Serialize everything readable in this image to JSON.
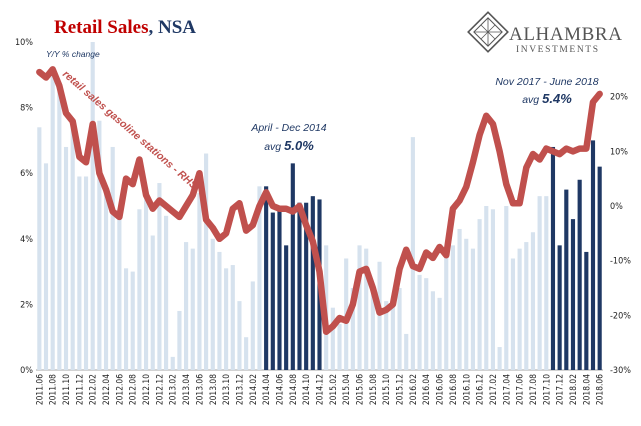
{
  "title": {
    "main": "Retail Sales",
    "suffix": ", NSA"
  },
  "logo": {
    "name": "ALHAMBRA",
    "sub": "INVESTMENTS",
    "color": "#555555"
  },
  "colors": {
    "bar_light": "#d6e2ee",
    "bar_dark": "#1f3864",
    "line": "#c0504d",
    "title_red": "#c00000",
    "title_blue": "#1f3864"
  },
  "chart_data": {
    "type": "bar",
    "left_axis": {
      "label": "Y/Y % change",
      "min": 0,
      "max": 10,
      "ticks": [
        "0%",
        "2%",
        "4%",
        "6%",
        "8%",
        "10%"
      ]
    },
    "right_axis": {
      "label": "",
      "min": -30,
      "max": 30,
      "ticks": [
        "-30%",
        "-20%",
        "-10%",
        "0%",
        "10%",
        "20%"
      ]
    },
    "x_tick_labels": [
      "2011.06",
      "2011.08",
      "2011.10",
      "2011.12",
      "2012.02",
      "2012.04",
      "2012.06",
      "2012.08",
      "2012.10",
      "2012.12",
      "2013.02",
      "2013.04",
      "2013.06",
      "2013.08",
      "2013.10",
      "2013.12",
      "2014.02",
      "2014.04",
      "2014.06",
      "2014.08",
      "2014.10",
      "2014.12",
      "2015.02",
      "2015.04",
      "2015.06",
      "2015.08",
      "2015.10",
      "2015.12",
      "2016.02",
      "2016.04",
      "2016.06",
      "2016.08",
      "2016.10",
      "2016.12",
      "2017.02",
      "2017.04",
      "2017.06",
      "2017.08",
      "2017.10",
      "2017.12",
      "2018.02",
      "2018.04",
      "2018.06"
    ],
    "highlight_ranges": [
      [
        "2014.04",
        "2014.12"
      ],
      [
        "2017.11",
        "2018.06"
      ]
    ],
    "series": [
      {
        "kind": "bar",
        "axis": "left",
        "x": [
          "2011.06",
          "2011.07",
          "2011.08",
          "2011.09",
          "2011.10",
          "2011.11",
          "2011.12",
          "2012.01",
          "2012.02",
          "2012.03",
          "2012.04",
          "2012.05",
          "2012.06",
          "2012.07",
          "2012.08",
          "2012.09",
          "2012.10",
          "2012.11",
          "2012.12",
          "2013.01",
          "2013.02",
          "2013.03",
          "2013.04",
          "2013.05",
          "2013.06",
          "2013.07",
          "2013.08",
          "2013.09",
          "2013.10",
          "2013.11",
          "2013.12",
          "2014.01",
          "2014.02",
          "2014.03",
          "2014.04",
          "2014.05",
          "2014.06",
          "2014.07",
          "2014.08",
          "2014.09",
          "2014.10",
          "2014.11",
          "2014.12",
          "2015.01",
          "2015.02",
          "2015.03",
          "2015.04",
          "2015.05",
          "2015.06",
          "2015.07",
          "2015.08",
          "2015.09",
          "2015.10",
          "2015.11",
          "2015.12",
          "2016.01",
          "2016.02",
          "2016.03",
          "2016.04",
          "2016.05",
          "2016.06",
          "2016.07",
          "2016.08",
          "2016.09",
          "2016.10",
          "2016.11",
          "2016.12",
          "2017.01",
          "2017.02",
          "2017.03",
          "2017.04",
          "2017.05",
          "2017.06",
          "2017.07",
          "2017.08",
          "2017.09",
          "2017.10",
          "2017.11",
          "2017.12",
          "2018.01",
          "2018.02",
          "2018.03",
          "2018.04",
          "2018.05",
          "2018.06"
        ],
        "values": [
          7.4,
          6.3,
          9.0,
          8.5,
          6.8,
          7.4,
          5.9,
          5.9,
          10.0,
          7.6,
          5.4,
          6.8,
          4.9,
          3.1,
          3.0,
          4.9,
          5.2,
          4.1,
          5.7,
          4.7,
          0.4,
          1.8,
          3.9,
          3.7,
          5.4,
          6.6,
          4.0,
          3.6,
          3.1,
          3.2,
          2.1,
          1.0,
          2.7,
          5.6,
          5.6,
          4.8,
          4.9,
          3.8,
          6.3,
          5.1,
          5.1,
          5.3,
          5.2,
          3.8,
          1.9,
          1.4,
          3.4,
          2.5,
          3.8,
          3.7,
          2.6,
          3.3,
          2.1,
          2.1,
          2.5,
          1.1,
          7.1,
          2.9,
          2.8,
          2.4,
          2.2,
          3.6,
          3.8,
          4.3,
          4.0,
          3.7,
          4.6,
          5.0,
          4.9,
          0.7,
          5.0,
          3.4,
          3.7,
          3.9,
          4.2,
          5.3,
          5.3,
          6.8,
          3.8,
          5.5,
          4.6,
          5.8,
          3.6,
          7.0,
          6.2
        ]
      },
      {
        "kind": "line",
        "axis": "right",
        "name": "retail sales gasoline stations - RHS",
        "x": [
          "2011.06",
          "2011.07",
          "2011.08",
          "2011.09",
          "2011.10",
          "2011.11",
          "2011.12",
          "2012.01",
          "2012.02",
          "2012.03",
          "2012.04",
          "2012.05",
          "2012.06",
          "2012.07",
          "2012.08",
          "2012.09",
          "2012.10",
          "2012.11",
          "2012.12",
          "2013.01",
          "2013.02",
          "2013.03",
          "2013.04",
          "2013.05",
          "2013.06",
          "2013.07",
          "2013.08",
          "2013.09",
          "2013.10",
          "2013.11",
          "2013.12",
          "2014.01",
          "2014.02",
          "2014.03",
          "2014.04",
          "2014.05",
          "2014.06",
          "2014.07",
          "2014.08",
          "2014.09",
          "2014.10",
          "2014.11",
          "2014.12",
          "2015.01",
          "2015.02",
          "2015.03",
          "2015.04",
          "2015.05",
          "2015.06",
          "2015.07",
          "2015.08",
          "2015.09",
          "2015.10",
          "2015.11",
          "2015.12",
          "2016.01",
          "2016.02",
          "2016.03",
          "2016.04",
          "2016.05",
          "2016.06",
          "2016.07",
          "2016.08",
          "2016.09",
          "2016.10",
          "2016.11",
          "2016.12",
          "2017.01",
          "2017.02",
          "2017.03",
          "2017.04",
          "2017.05",
          "2017.06",
          "2017.07",
          "2017.08",
          "2017.09",
          "2017.10",
          "2017.11",
          "2017.12",
          "2018.01",
          "2018.02",
          "2018.03",
          "2018.04",
          "2018.05",
          "2018.06"
        ],
        "values": [
          24.5,
          23.5,
          25.0,
          22.0,
          17.0,
          15.5,
          9.0,
          8.0,
          15.0,
          6.0,
          3.0,
          -1.0,
          -2.0,
          5.0,
          4.0,
          8.5,
          2.0,
          -0.5,
          1.0,
          0.0,
          -1.0,
          -2.0,
          0.0,
          2.0,
          6.0,
          -2.5,
          -4.0,
          -6.0,
          -5.0,
          -0.5,
          0.5,
          -4.5,
          -3.5,
          0.0,
          2.5,
          0.0,
          -0.5,
          -0.5,
          -1.0,
          0.0,
          -3.5,
          -6.5,
          -12.0,
          -23.0,
          -22.0,
          -20.5,
          -21.0,
          -18.0,
          -12.0,
          -11.5,
          -15.0,
          -19.5,
          -19.0,
          -18.0,
          -11.5,
          -8.0,
          -11.0,
          -11.5,
          -8.5,
          -9.5,
          -7.5,
          -9.0,
          -0.5,
          1.0,
          3.5,
          8.0,
          13.0,
          16.5,
          15.0,
          10.0,
          4.0,
          0.5,
          0.5,
          7.0,
          9.5,
          8.5,
          10.5,
          10.0,
          9.5,
          10.5,
          10.0,
          10.5,
          10.5,
          19.0,
          20.5
        ]
      }
    ],
    "annotations": [
      {
        "id": "gas",
        "text": "retail sales gasoline stations - RHS"
      },
      {
        "id": "period1",
        "line1": "April - Dec 2014",
        "avg_prefix": "avg",
        "avg_value": "5.0%"
      },
      {
        "id": "period2",
        "line1": "Nov 2017 - June 2018",
        "avg_prefix": "avg",
        "avg_value": "5.4%"
      }
    ]
  }
}
